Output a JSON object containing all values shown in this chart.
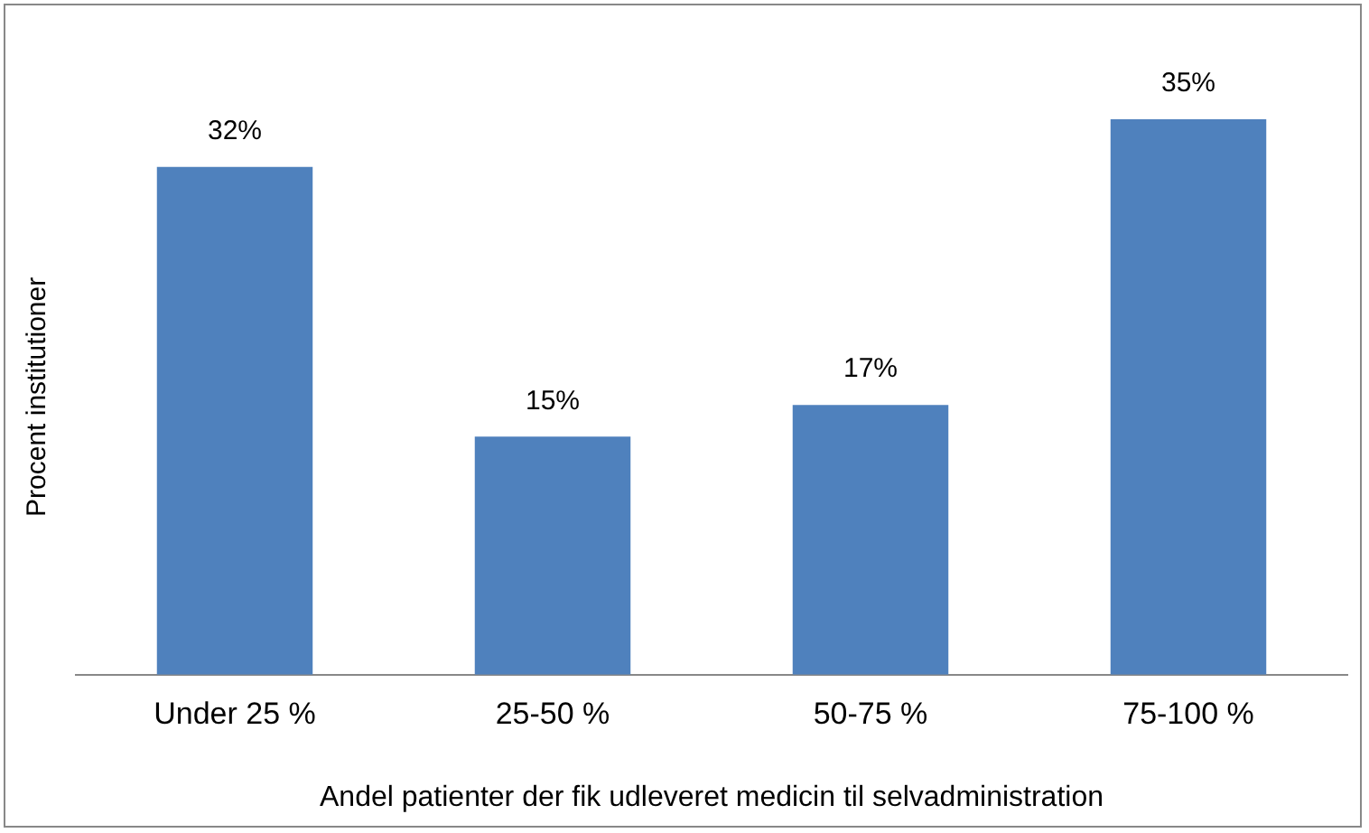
{
  "chart_data": {
    "type": "bar",
    "xlabel": "Andel patienter der fik udleveret medicin til selvadministration",
    "ylabel": "Procent institutioner",
    "categories": [
      "Under 25 %",
      "25-50 %",
      "50-75 %",
      "75-100 %"
    ],
    "values": [
      32,
      15,
      17,
      35
    ],
    "value_labels": [
      "32%",
      "15%",
      "17%",
      "35%"
    ],
    "color": "#4f81bd",
    "tick_labels": "x",
    "grid": false,
    "legend": false
  }
}
